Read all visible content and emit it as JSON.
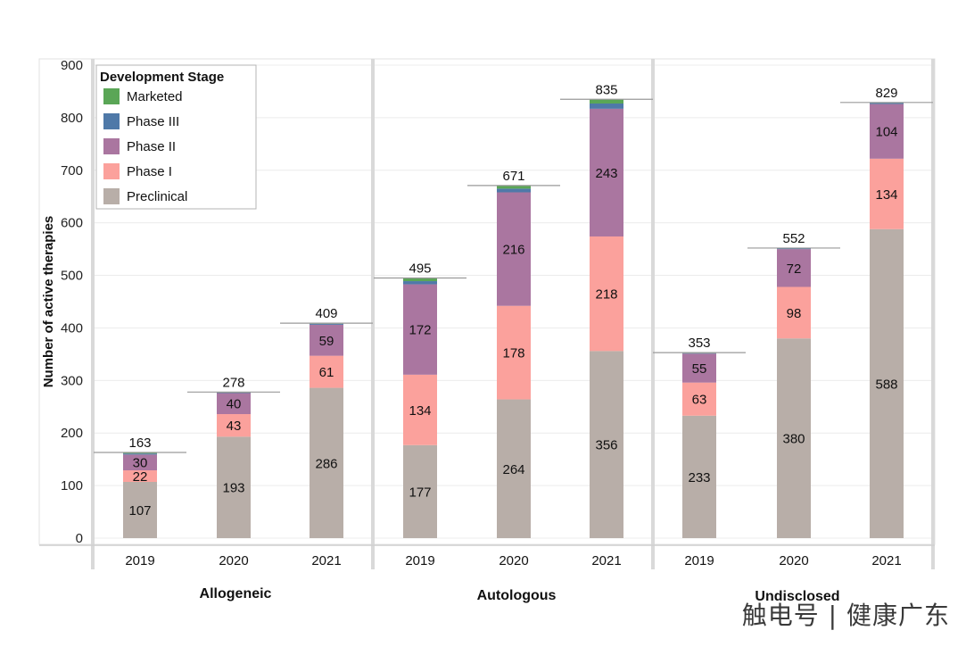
{
  "watermark": "触电号 | 健康广东",
  "colors": {
    "Preclinical": "#b8aea8",
    "Phase I": "#fba19c",
    "Phase II": "#aa76a0",
    "Phase III": "#4f79a8",
    "Marketed": "#5aa656"
  },
  "chart_data": {
    "type": "bar",
    "stacked": true,
    "ylabel": "Number of active therapies",
    "ylim": [
      0,
      900
    ],
    "yticks": [
      0,
      100,
      200,
      300,
      400,
      500,
      600,
      700,
      800,
      900
    ],
    "grid": true,
    "legend": {
      "title": "Development Stage",
      "placement": "top-left",
      "entries": [
        "Marketed",
        "Phase III",
        "Phase II",
        "Phase I",
        "Preclinical"
      ]
    },
    "stack_order": [
      "Preclinical",
      "Phase I",
      "Phase II",
      "Phase III",
      "Marketed"
    ],
    "panels": [
      {
        "name": "Allogeneic",
        "bars": [
          {
            "year": "2019",
            "total": 163,
            "values": {
              "Preclinical": 107,
              "Phase I": 22,
              "Phase II": 30,
              "Phase III": 2,
              "Marketed": 2
            }
          },
          {
            "year": "2020",
            "total": 278,
            "values": {
              "Preclinical": 193,
              "Phase I": 43,
              "Phase II": 40,
              "Phase III": 1,
              "Marketed": 1
            }
          },
          {
            "year": "2021",
            "total": 409,
            "values": {
              "Preclinical": 286,
              "Phase I": 61,
              "Phase II": 59,
              "Phase III": 2,
              "Marketed": 1
            }
          }
        ]
      },
      {
        "name": "Autologous",
        "bars": [
          {
            "year": "2019",
            "total": 495,
            "values": {
              "Preclinical": 177,
              "Phase I": 134,
              "Phase II": 172,
              "Phase III": 6,
              "Marketed": 6
            }
          },
          {
            "year": "2020",
            "total": 671,
            "values": {
              "Preclinical": 264,
              "Phase I": 178,
              "Phase II": 216,
              "Phase III": 7,
              "Marketed": 6
            }
          },
          {
            "year": "2021",
            "total": 835,
            "values": {
              "Preclinical": 356,
              "Phase I": 218,
              "Phase II": 243,
              "Phase III": 10,
              "Marketed": 8
            }
          }
        ]
      },
      {
        "name": "Undisclosed",
        "bars": [
          {
            "year": "2019",
            "total": 353,
            "values": {
              "Preclinical": 233,
              "Phase I": 63,
              "Phase II": 55,
              "Phase III": 1,
              "Marketed": 1
            }
          },
          {
            "year": "2020",
            "total": 552,
            "values": {
              "Preclinical": 380,
              "Phase I": 98,
              "Phase II": 72,
              "Phase III": 1,
              "Marketed": 1
            }
          },
          {
            "year": "2021",
            "total": 829,
            "values": {
              "Preclinical": 588,
              "Phase I": 134,
              "Phase II": 104,
              "Phase III": 2,
              "Marketed": 1
            }
          }
        ]
      }
    ],
    "segment_labels_shown": [
      "Preclinical",
      "Phase I",
      "Phase II"
    ]
  }
}
